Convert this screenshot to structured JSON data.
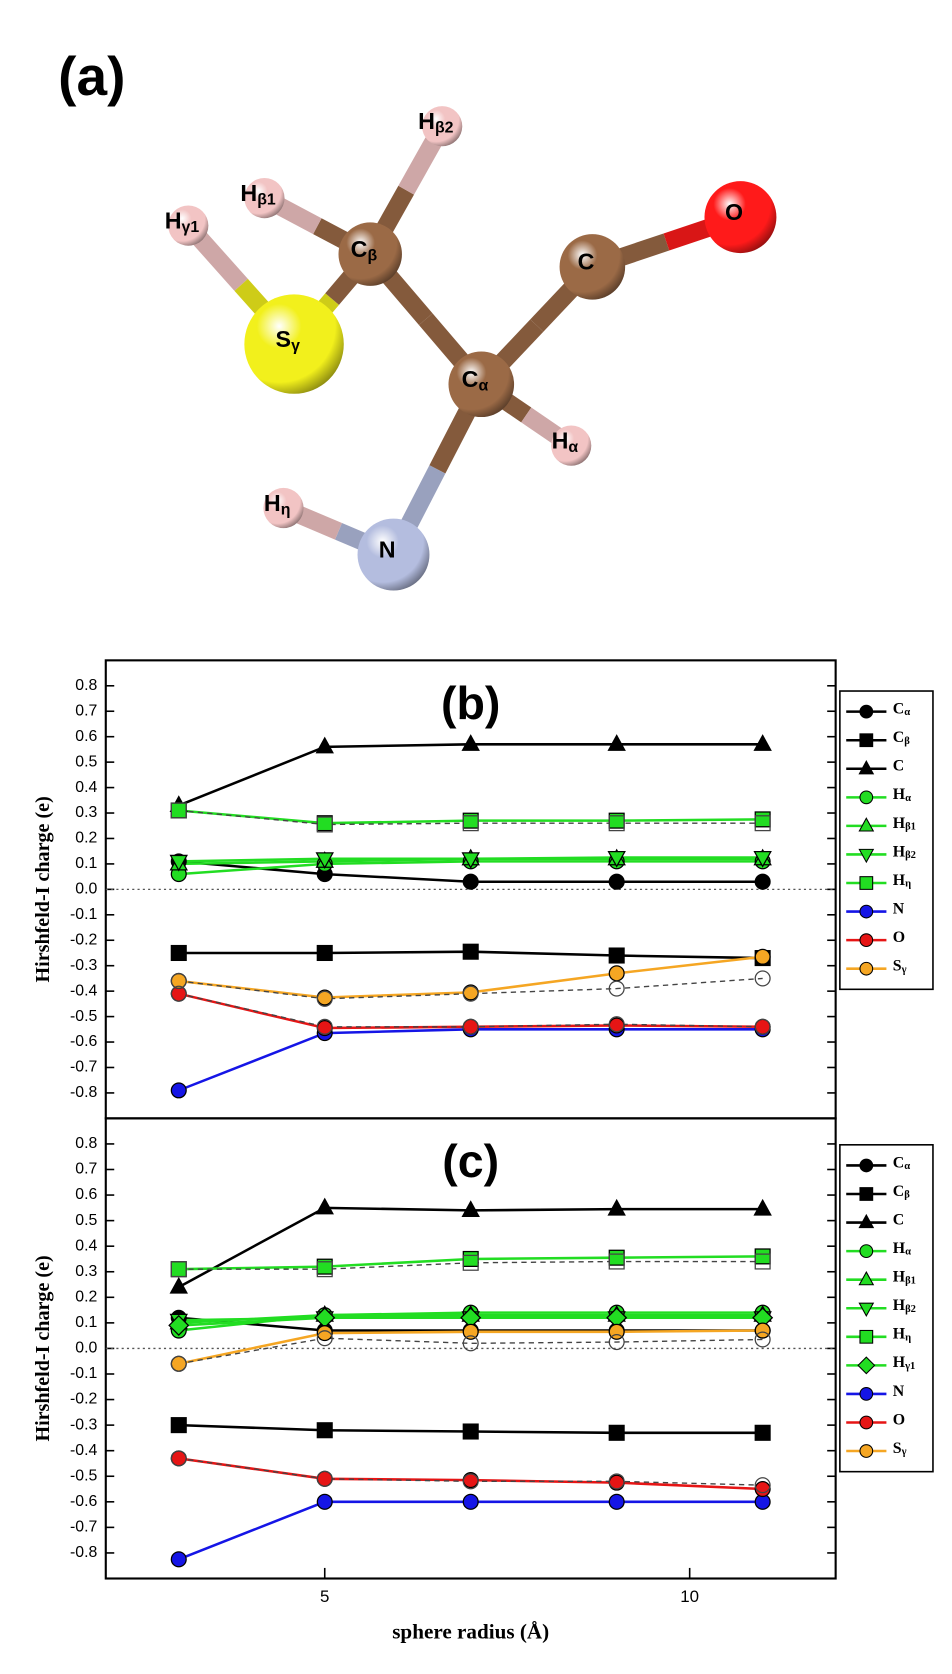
{
  "molecule": {
    "panel_label": "(a)",
    "atoms": [
      {
        "label": "Hγ1",
        "color": "#f2c4c4"
      },
      {
        "label": "Hβ1",
        "color": "#f2c4c4"
      },
      {
        "label": "Hβ2",
        "color": "#f2c4c4"
      },
      {
        "label": "Cβ",
        "color": "#9b6a46"
      },
      {
        "label": "Sγ",
        "color": "#f2f01c"
      },
      {
        "label": "C",
        "color": "#9b6a46"
      },
      {
        "label": "O",
        "color": "#ff1a1a"
      },
      {
        "label": "Cα",
        "color": "#9b6a46"
      },
      {
        "label": "Hα",
        "color": "#f2c4c4"
      },
      {
        "label": "Hη",
        "color": "#f2c4c4"
      },
      {
        "label": "N",
        "color": "#b4bddf"
      }
    ]
  },
  "chart_data": [
    {
      "type": "line",
      "title": "(b)",
      "y_label": "Hirshfeld-I charge (e)",
      "x": [
        3,
        5,
        7,
        9,
        11
      ],
      "xlim": [
        2,
        12
      ],
      "ylim": [
        -0.9,
        0.9
      ],
      "yticks": [
        -0.8,
        -0.7,
        -0.6,
        -0.5,
        -0.4,
        -0.3,
        -0.2,
        -0.1,
        {
          "value": 0,
          "label": "0.0"
        },
        0.1,
        0.2,
        0.3,
        0.4,
        0.5,
        0.6,
        0.7,
        0.8
      ],
      "zero_line": true,
      "legend": "outside-right",
      "series": [
        {
          "name": "Cα",
          "color": "#000000",
          "marker": "circle",
          "values": [
            0.11,
            0.06,
            0.03,
            0.03,
            0.03
          ]
        },
        {
          "name": "Cβ",
          "color": "#000000",
          "marker": "square",
          "values": [
            -0.25,
            -0.25,
            -0.245,
            -0.26,
            -0.27
          ]
        },
        {
          "name": "C",
          "color": "#000000",
          "marker": "triangle-up",
          "values": [
            0.33,
            0.56,
            0.57,
            0.57,
            0.57
          ]
        },
        {
          "name": "Hα",
          "color": "#22dd22",
          "marker": "circle",
          "values": [
            0.06,
            0.1,
            0.11,
            0.11,
            0.11
          ]
        },
        {
          "name": "Hβ1",
          "color": "#22dd22",
          "marker": "triangle-up",
          "values": [
            0.1,
            0.11,
            0.12,
            0.12,
            0.12
          ]
        },
        {
          "name": "Hβ2",
          "color": "#22dd22",
          "marker": "triangle-down",
          "values": [
            0.11,
            0.12,
            0.12,
            0.125,
            0.125
          ]
        },
        {
          "name": "Hη",
          "color": "#22dd22",
          "marker": "square",
          "values": [
            0.31,
            0.26,
            0.27,
            0.27,
            0.275
          ]
        },
        {
          "name": "N",
          "color": "#1515e6",
          "marker": "circle",
          "values": [
            -0.79,
            -0.565,
            -0.55,
            -0.55,
            -0.55
          ]
        },
        {
          "name": "O",
          "color": "#e61515",
          "marker": "circle",
          "values": [
            -0.41,
            -0.545,
            -0.54,
            -0.535,
            -0.54
          ]
        },
        {
          "name": "Sγ",
          "color": "#f5a623",
          "marker": "circle",
          "values": [
            -0.36,
            -0.425,
            -0.405,
            -0.33,
            -0.265
          ]
        },
        {
          "color": "#444444",
          "marker": "circle",
          "dashed": true,
          "open": true,
          "values": [
            -0.36,
            -0.43,
            -0.41,
            -0.39,
            -0.35
          ]
        },
        {
          "color": "#444444",
          "marker": "square",
          "dashed": true,
          "open": true,
          "values": [
            0.31,
            0.255,
            0.26,
            0.26,
            0.26
          ]
        },
        {
          "color": "#444444",
          "marker": "circle",
          "dashed": true,
          "open": true,
          "values": [
            -0.41,
            -0.54,
            -0.54,
            -0.53,
            -0.54
          ]
        }
      ]
    },
    {
      "type": "line",
      "title": "(c)",
      "y_label": "Hirshfeld-I charge (e)",
      "x_label": "sphere radius (Å)",
      "x": [
        3,
        5,
        7,
        9,
        11
      ],
      "xlim": [
        2,
        12
      ],
      "xticks": [
        5,
        10
      ],
      "ylim": [
        -0.9,
        0.9
      ],
      "yticks": [
        -0.8,
        -0.7,
        -0.6,
        -0.5,
        -0.4,
        -0.3,
        -0.2,
        -0.1,
        {
          "value": 0,
          "label": "0.0"
        },
        0.1,
        0.2,
        0.3,
        0.4,
        0.5,
        0.6,
        0.7,
        0.8
      ],
      "zero_line": true,
      "legend": "outside-right",
      "series": [
        {
          "name": "Cα",
          "color": "#000000",
          "marker": "circle",
          "values": [
            0.12,
            0.07,
            0.07,
            0.07,
            0.07
          ]
        },
        {
          "name": "Cβ",
          "color": "#000000",
          "marker": "square",
          "values": [
            -0.3,
            -0.32,
            -0.325,
            -0.33,
            -0.33
          ]
        },
        {
          "name": "C",
          "color": "#000000",
          "marker": "triangle-up",
          "values": [
            0.24,
            0.55,
            0.54,
            0.545,
            0.545
          ]
        },
        {
          "name": "Hα",
          "color": "#22dd22",
          "marker": "circle",
          "values": [
            0.07,
            0.13,
            0.14,
            0.14,
            0.14
          ]
        },
        {
          "name": "Hβ1",
          "color": "#22dd22",
          "marker": "triangle-up",
          "values": [
            0.1,
            0.13,
            0.13,
            0.13,
            0.13
          ]
        },
        {
          "name": "Hβ2",
          "color": "#22dd22",
          "marker": "triangle-down",
          "values": [
            0.11,
            0.12,
            0.12,
            0.12,
            0.12
          ]
        },
        {
          "name": "Hη",
          "color": "#22dd22",
          "marker": "square",
          "values": [
            0.31,
            0.32,
            0.35,
            0.355,
            0.36
          ]
        },
        {
          "name": "Hγ1",
          "color": "#22dd22",
          "marker": "diamond",
          "values": [
            0.09,
            0.12,
            0.12,
            0.12,
            0.12
          ]
        },
        {
          "name": "N",
          "color": "#1515e6",
          "marker": "circle",
          "values": [
            -0.825,
            -0.6,
            -0.6,
            -0.6,
            -0.6
          ]
        },
        {
          "name": "O",
          "color": "#e61515",
          "marker": "circle",
          "values": [
            -0.43,
            -0.51,
            -0.515,
            -0.525,
            -0.55
          ]
        },
        {
          "name": "Sγ",
          "color": "#f5a623",
          "marker": "circle",
          "values": [
            -0.06,
            0.06,
            0.065,
            0.065,
            0.07
          ]
        },
        {
          "color": "#444444",
          "marker": "square",
          "dashed": true,
          "open": true,
          "values": [
            0.31,
            0.31,
            0.335,
            0.34,
            0.34
          ]
        },
        {
          "color": "#444444",
          "marker": "circle",
          "dashed": true,
          "open": true,
          "values": [
            -0.06,
            0.04,
            0.02,
            0.025,
            0.035
          ]
        },
        {
          "color": "#444444",
          "marker": "circle",
          "dashed": true,
          "open": true,
          "values": [
            -0.43,
            -0.51,
            -0.52,
            -0.52,
            -0.535
          ]
        }
      ]
    }
  ]
}
